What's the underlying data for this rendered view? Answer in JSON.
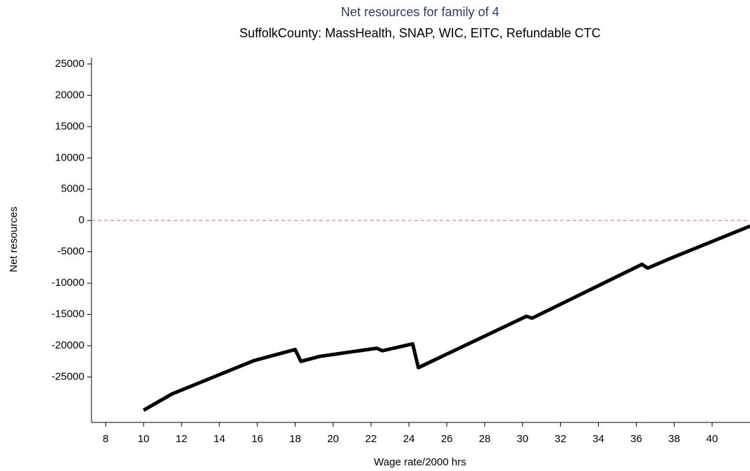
{
  "chart_data": {
    "type": "line",
    "title": "Net resources for family of 4",
    "subtitle": "SuffolkCounty:  MassHealth, SNAP, WIC, EITC, Refundable CTC",
    "xlabel": "Wage rate/2000 hrs",
    "ylabel": "Net resources",
    "x": [
      10,
      11.5,
      15.8,
      18,
      18.3,
      19.3,
      22.3,
      22.6,
      24.2,
      24.5,
      30.2,
      30.5,
      36.3,
      36.6,
      38,
      42
    ],
    "series": [
      {
        "name": "Net resources",
        "color": "#000000",
        "values": [
          -30300,
          -27700,
          -22400,
          -20600,
          -22500,
          -21700,
          -20400,
          -20800,
          -19700,
          -23500,
          -15300,
          -15600,
          -7000,
          -7600,
          -5800,
          -900
        ]
      }
    ],
    "xlim": [
      7.25,
      42
    ],
    "ylim": [
      -32250,
      26000
    ],
    "xticks": [
      8,
      10,
      12,
      14,
      16,
      18,
      20,
      22,
      24,
      26,
      28,
      30,
      32,
      34,
      36,
      38,
      40
    ],
    "yticks": [
      -25000,
      -20000,
      -15000,
      -10000,
      -5000,
      0,
      5000,
      10000,
      15000,
      20000,
      25000
    ],
    "reference_line": {
      "y": 0,
      "color": "#e8829a"
    },
    "title_color": "#2f3d63"
  }
}
